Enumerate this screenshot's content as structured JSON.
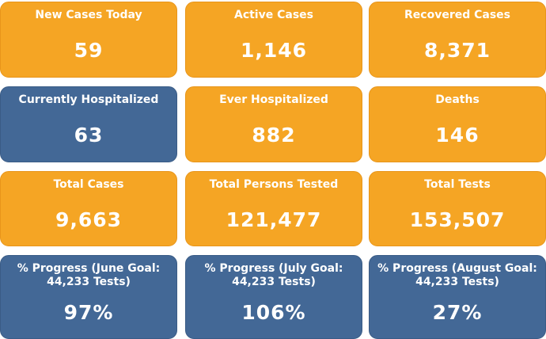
{
  "tiles": [
    {
      "id": "new-cases-today",
      "label": "New Cases Today",
      "value": "59",
      "color": "orange"
    },
    {
      "id": "active-cases",
      "label": "Active Cases",
      "value": "1,146",
      "color": "orange"
    },
    {
      "id": "recovered-cases",
      "label": "Recovered Cases",
      "value": "8,371",
      "color": "orange"
    },
    {
      "id": "currently-hospitalized",
      "label": "Currently Hospitalized",
      "value": "63",
      "color": "blue"
    },
    {
      "id": "ever-hospitalized",
      "label": "Ever Hospitalized",
      "value": "882",
      "color": "orange"
    },
    {
      "id": "deaths",
      "label": "Deaths",
      "value": "146",
      "color": "orange"
    },
    {
      "id": "total-cases",
      "label": "Total Cases",
      "value": "9,663",
      "color": "orange"
    },
    {
      "id": "total-persons-tested",
      "label": "Total Persons Tested",
      "value": "121,477",
      "color": "orange"
    },
    {
      "id": "total-tests",
      "label": "Total Tests",
      "value": "153,507",
      "color": "orange"
    },
    {
      "id": "progress-june",
      "label": "% Progress (June Goal:\n44,233 Tests)",
      "value": "97%",
      "color": "blue"
    },
    {
      "id": "progress-july",
      "label": "% Progress (July Goal:\n44,233 Tests)",
      "value": "106%",
      "color": "blue"
    },
    {
      "id": "progress-august",
      "label": "% Progress (August Goal:\n44,233 Tests)",
      "value": "27%",
      "color": "blue"
    }
  ],
  "colors": {
    "orange": "#f5a524",
    "blue": "#436896",
    "text": "#ffffff"
  }
}
